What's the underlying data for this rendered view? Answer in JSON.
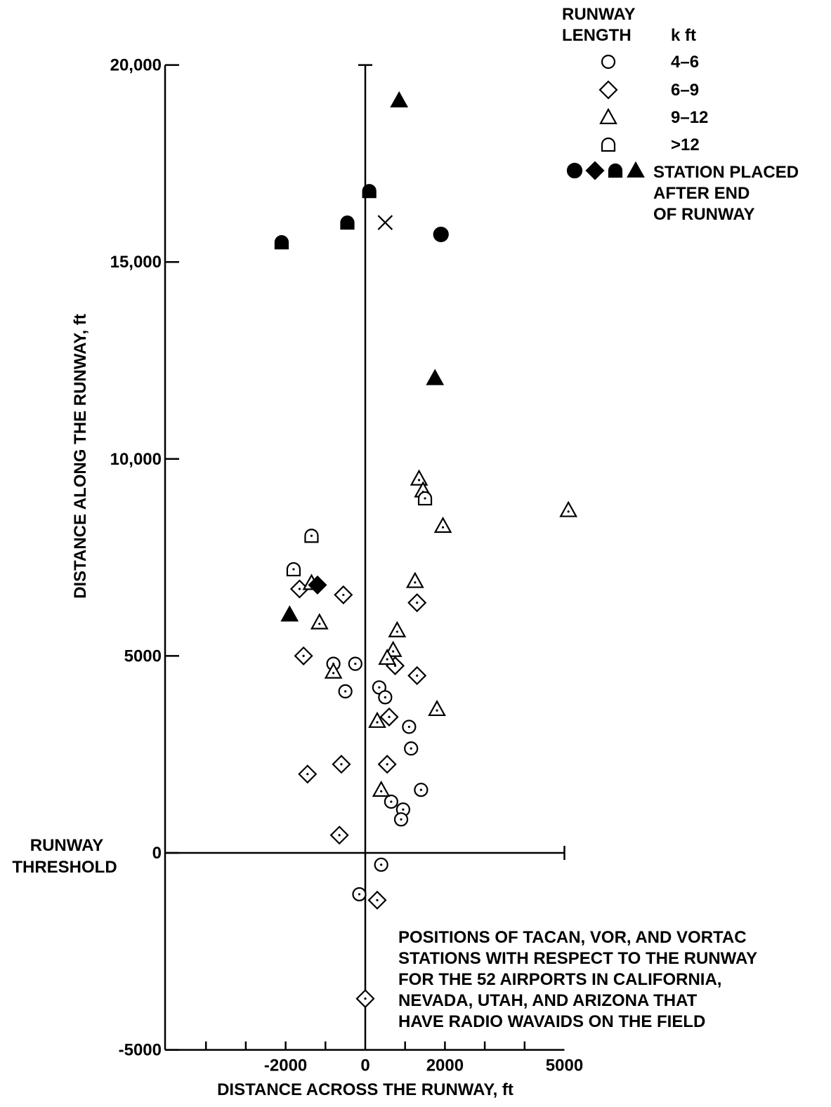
{
  "chart_data": {
    "type": "scatter",
    "title": "POSITIONS OF TACAN, VOR, AND VORTAC STATIONS WITH RESPECT TO THE RUNWAY FOR THE 52 AIRPORTS IN CALIFORNIA, NEVADA, UTAH, AND ARIZONA THAT HAVE RADIO WAVAIDS ON THE FIELD",
    "title_lines": [
      "POSITIONS OF TACAN, VOR, AND VORTAC",
      "STATIONS WITH RESPECT TO THE RUNWAY",
      "FOR THE 52 AIRPORTS IN CALIFORNIA,",
      "NEVADA, UTAH, AND ARIZONA THAT",
      "HAVE RADIO WAVAIDS ON THE FIELD"
    ],
    "xlabel": "DISTANCE ACROSS THE RUNWAY, ft",
    "ylabel": "DISTANCE ALONG THE RUNWAY, ft",
    "xlim": [
      -5000,
      5000
    ],
    "ylim": [
      -5000,
      20000
    ],
    "x_ticks": [
      -2000,
      0,
      2000,
      5000
    ],
    "x_tick_labels": [
      "-2000",
      "0",
      "2000",
      "5000"
    ],
    "y_ticks": [
      20000,
      15000,
      10000,
      5000,
      0,
      -5000
    ],
    "y_tick_labels": [
      "20,000",
      "15,000",
      "10,000",
      "5000",
      "0",
      "-5000"
    ],
    "threshold_label": [
      "RUNWAY",
      "THRESHOLD"
    ],
    "grid": false,
    "legend": {
      "placement": "top-right",
      "title_lines": [
        "RUNWAY",
        "LENGTH"
      ],
      "unit": "k ft",
      "entries": [
        {
          "marker": "circle",
          "label": "4–6"
        },
        {
          "marker": "diamond",
          "label": "6–9"
        },
        {
          "marker": "triangle",
          "label": "9–12"
        },
        {
          "marker": "arch",
          "label": ">12"
        }
      ],
      "filled_label_lines": [
        "STATION PLACED",
        "AFTER END",
        "OF RUNWAY"
      ]
    },
    "series": [
      {
        "marker": "circle",
        "points": [
          {
            "x": -800,
            "y": 4800
          },
          {
            "x": -250,
            "y": 4800
          },
          {
            "x": -500,
            "y": 4100
          },
          {
            "x": 350,
            "y": 4200
          },
          {
            "x": 500,
            "y": 3950
          },
          {
            "x": 1100,
            "y": 3200
          },
          {
            "x": 1150,
            "y": 2650
          },
          {
            "x": 1400,
            "y": 1600
          },
          {
            "x": 650,
            "y": 1300
          },
          {
            "x": 950,
            "y": 1100
          },
          {
            "x": 900,
            "y": 850
          },
          {
            "x": 400,
            "y": -300
          },
          {
            "x": -150,
            "y": -1050
          }
        ]
      },
      {
        "marker": "diamond",
        "points": [
          {
            "x": -1650,
            "y": 6700
          },
          {
            "x": -550,
            "y": 6550
          },
          {
            "x": 1300,
            "y": 6350
          },
          {
            "x": -1550,
            "y": 5000
          },
          {
            "x": 750,
            "y": 4750
          },
          {
            "x": 1300,
            "y": 4500
          },
          {
            "x": 600,
            "y": 3450
          },
          {
            "x": -600,
            "y": 2250
          },
          {
            "x": 550,
            "y": 2250
          },
          {
            "x": -1450,
            "y": 2000
          },
          {
            "x": -650,
            "y": 450
          },
          {
            "x": 300,
            "y": -1200
          },
          {
            "x": 0,
            "y": -3700
          }
        ]
      },
      {
        "marker": "triangle",
        "points": [
          {
            "x": 1350,
            "y": 9500
          },
          {
            "x": 1450,
            "y": 9200
          },
          {
            "x": 1950,
            "y": 8300
          },
          {
            "x": 5100,
            "y": 8700
          },
          {
            "x": -1350,
            "y": 6850
          },
          {
            "x": 1250,
            "y": 6900
          },
          {
            "x": -1150,
            "y": 5850
          },
          {
            "x": 800,
            "y": 5650
          },
          {
            "x": 700,
            "y": 5150
          },
          {
            "x": 550,
            "y": 4950
          },
          {
            "x": -800,
            "y": 4600
          },
          {
            "x": 1800,
            "y": 3650
          },
          {
            "x": 300,
            "y": 3350
          },
          {
            "x": 400,
            "y": 1600
          }
        ]
      },
      {
        "marker": "arch",
        "points": [
          {
            "x": 1500,
            "y": 9000
          },
          {
            "x": -1350,
            "y": 8050
          },
          {
            "x": -1800,
            "y": 7200
          }
        ]
      },
      {
        "marker": "circle-filled",
        "points": [
          {
            "x": 1900,
            "y": 15700
          }
        ]
      },
      {
        "marker": "diamond-filled",
        "points": [
          {
            "x": -1200,
            "y": 6800
          }
        ]
      },
      {
        "marker": "triangle-filled",
        "points": [
          {
            "x": 850,
            "y": 19100
          },
          {
            "x": 1750,
            "y": 12050
          },
          {
            "x": -1900,
            "y": 6050
          }
        ]
      },
      {
        "marker": "arch-filled",
        "points": [
          {
            "x": 100,
            "y": 16800
          },
          {
            "x": -450,
            "y": 16000
          },
          {
            "x": -2100,
            "y": 15500
          }
        ]
      },
      {
        "marker": "cross",
        "points": [
          {
            "x": 500,
            "y": 16000
          }
        ]
      }
    ]
  }
}
